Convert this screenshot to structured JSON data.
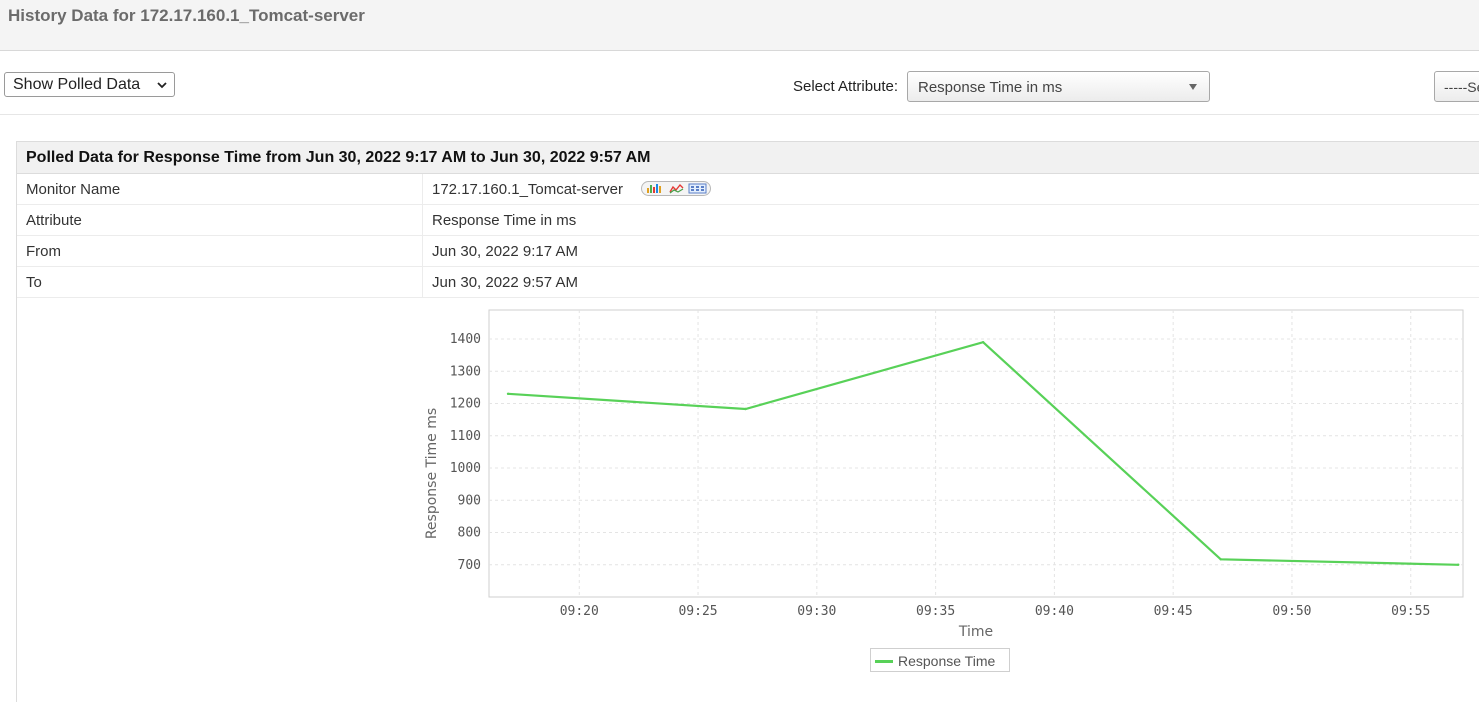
{
  "page": {
    "title": "History Data for 172.17.160.1_Tomcat-server"
  },
  "toolbar": {
    "view_select": "Show Polled Data",
    "attribute_label": "Select Attribute:",
    "attribute_value": "Response Time in ms",
    "period_select": "-----Select Period-----"
  },
  "panel": {
    "header": "Polled Data for Response Time from Jun 30, 2022 9:17 AM to Jun 30, 2022 9:57 AM",
    "rows": [
      {
        "label": "Monitor Name",
        "value": "172.17.160.1_Tomcat-server"
      },
      {
        "label": "Attribute",
        "value": "Response Time in ms"
      },
      {
        "label": "From",
        "value": "Jun 30, 2022 9:17 AM"
      },
      {
        "label": "To",
        "value": "Jun 30, 2022 9:57 AM"
      }
    ]
  },
  "chart_data": {
    "type": "line",
    "xlabel": "Time",
    "ylabel": "Response Time ms",
    "x_ticks": [
      "09:20",
      "09:25",
      "09:30",
      "09:35",
      "09:40",
      "09:45",
      "09:50",
      "09:55"
    ],
    "y_ticks": [
      700,
      800,
      900,
      1000,
      1100,
      1200,
      1300,
      1400
    ],
    "xlim": [
      "09:17",
      "09:57"
    ],
    "ylim": [
      600,
      1490
    ],
    "grid": true,
    "legend_position": "bottom-center",
    "series": [
      {
        "name": "Response Time",
        "color": "#58d158",
        "points": [
          {
            "x": "09:17",
            "y": 1230
          },
          {
            "x": "09:27",
            "y": 1183
          },
          {
            "x": "09:37",
            "y": 1390
          },
          {
            "x": "09:47",
            "y": 717
          },
          {
            "x": "09:57",
            "y": 700
          }
        ]
      }
    ]
  }
}
